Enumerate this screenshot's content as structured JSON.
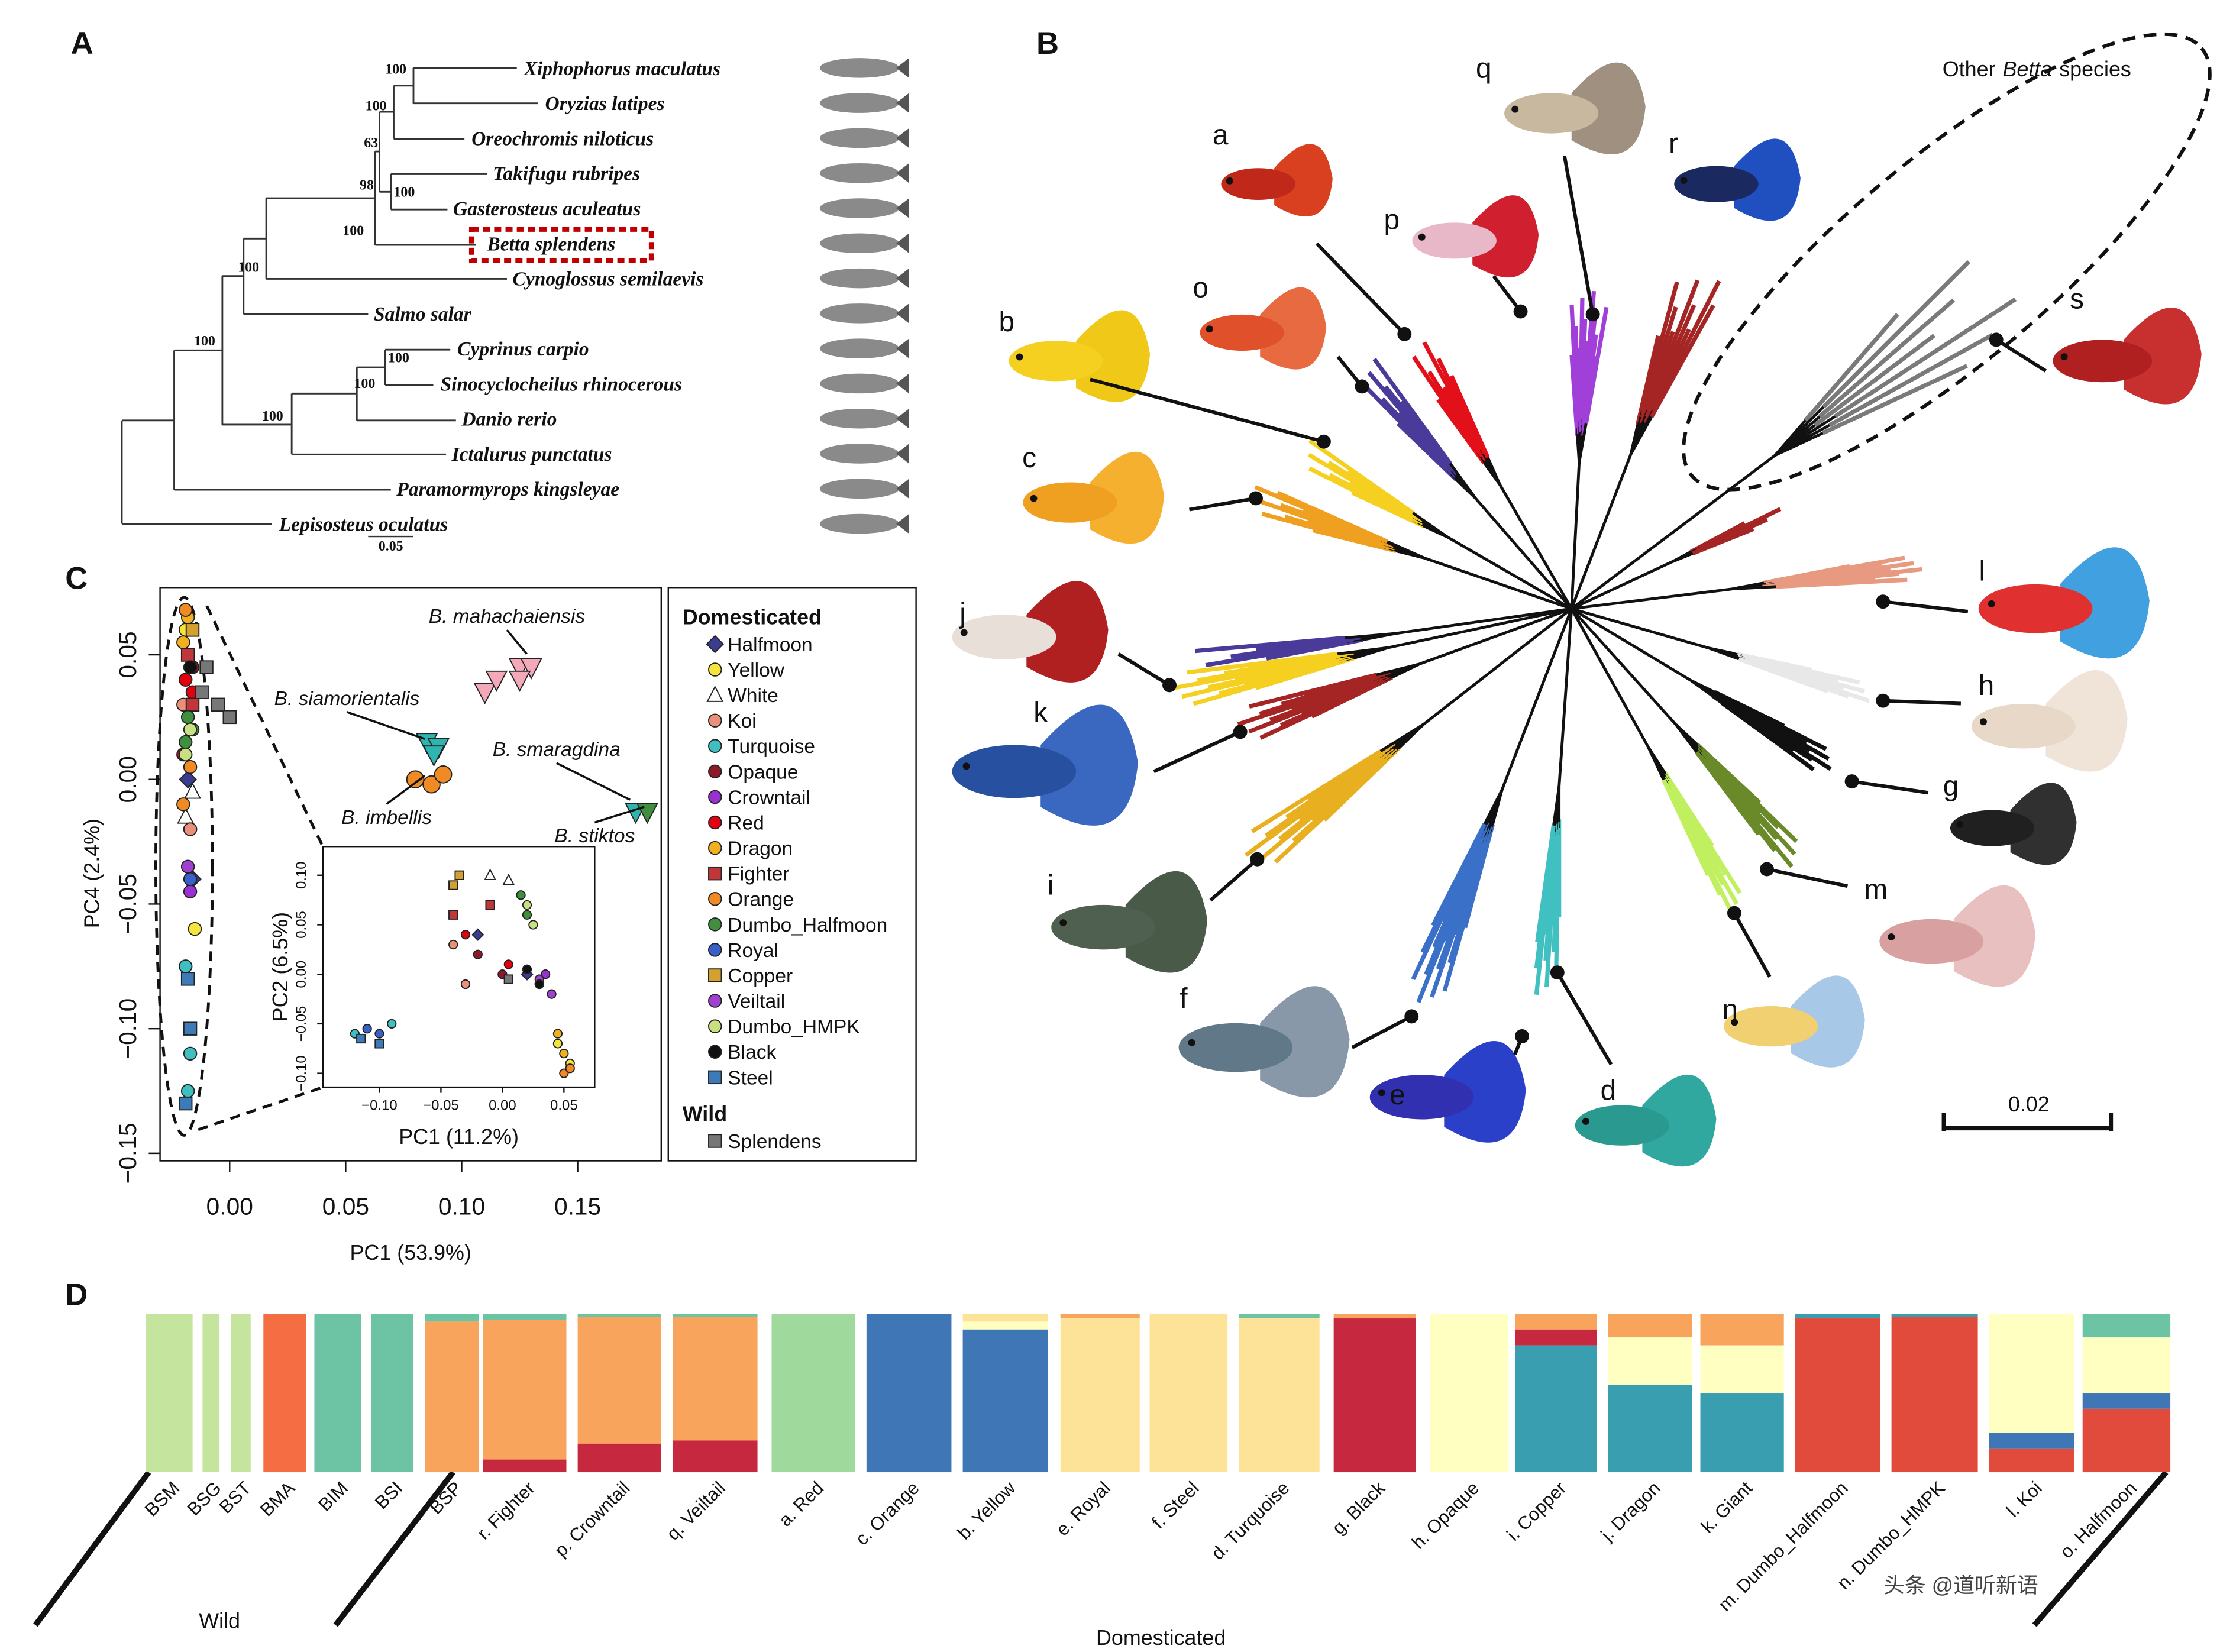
{
  "panel_a": {
    "label": "A",
    "taxa": [
      "Xiphophorus maculatus",
      "Oryzias latipes",
      "Oreochromis niloticus",
      "Takifugu rubripes",
      "Gasterosteus aculeatus",
      "Betta splendens",
      "Cynoglossus semilaevis",
      "Salmo salar",
      "Cyprinus carpio",
      "Sinocyclocheilus rhinocerous",
      "Danio rerio",
      "Ictalurus punctatus",
      "Paramormyrops kingsleyae",
      "Lepisosteus oculatus"
    ],
    "bootstrap": [
      100,
      100,
      63,
      98,
      100,
      100,
      100,
      100,
      100,
      100,
      100
    ],
    "scale": "0.05"
  },
  "panel_b": {
    "label": "B",
    "clades": [
      "a",
      "b",
      "c",
      "o",
      "p",
      "q",
      "r",
      "s",
      "l",
      "h",
      "g",
      "m",
      "n",
      "d",
      "e",
      "f",
      "i",
      "k",
      "j"
    ],
    "annotation": [
      "Other",
      "Betta",
      "species"
    ],
    "scale": "0.02"
  },
  "panel_c": {
    "label": "C",
    "type": "scatter",
    "xlabel": "PC1 (53.9%)",
    "ylabel": "PC4 (2.4%)",
    "xlim": [
      -0.03,
      0.186
    ],
    "ylim": [
      -0.153,
      0.077
    ],
    "xticks": [
      {
        "value": 0,
        "label": "0.00"
      },
      {
        "value": 0.05,
        "label": "0.05"
      },
      {
        "value": 0.1,
        "label": "0.10"
      },
      {
        "value": 0.15,
        "label": "0.15"
      }
    ],
    "yticks": [
      {
        "value": 0.05,
        "label": "0.05"
      },
      {
        "value": 0,
        "label": "0.00"
      },
      {
        "value": -0.05,
        "label": "−0.05"
      },
      {
        "value": -0.1,
        "label": "−0.10"
      },
      {
        "value": -0.15,
        "label": "−0.15"
      }
    ],
    "inset": {
      "xlabel": "PC1 (11.2%)",
      "ylabel": "PC2 (6.5%)",
      "xlim": [
        -0.146,
        0.075
      ],
      "ylim": [
        -0.114,
        0.129
      ],
      "xticks": [
        {
          "value": -0.1,
          "label": "−0.10"
        },
        {
          "value": -0.05,
          "label": "−0.05"
        },
        {
          "value": 0,
          "label": "0.00"
        },
        {
          "value": 0.05,
          "label": "0.05"
        }
      ],
      "yticks": [
        {
          "value": 0.1,
          "label": "0.10"
        },
        {
          "value": 0.05,
          "label": "0.05"
        },
        {
          "value": 0,
          "label": "0.00"
        },
        {
          "value": -0.05,
          "label": "−0.05"
        },
        {
          "value": -0.1,
          "label": "−0.10"
        }
      ]
    },
    "species": [
      {
        "name": "B. mahachaiensis",
        "color": "#f4a9b8",
        "marker": "down",
        "x": [
          0.11,
          0.115,
          0.125,
          0.13,
          0.125
        ],
        "y": [
          0.035,
          0.04,
          0.045,
          0.045,
          0.04
        ]
      },
      {
        "name": "B. siamorientalis",
        "color": "#2fb5b0",
        "marker": "down",
        "x": [
          0.085,
          0.09,
          0.088
        ],
        "y": [
          0.015,
          0.013,
          0.01
        ]
      },
      {
        "name": "B. imbellis",
        "color": "#f08a24",
        "marker": "circle",
        "x": [
          0.08,
          0.087,
          0.092
        ],
        "y": [
          0,
          -0.002,
          0.002
        ]
      },
      {
        "name": "B. smaragdina",
        "color": "#2fb5b0",
        "marker": "down",
        "x": [
          0.175
        ],
        "y": [
          -0.013
        ]
      },
      {
        "name": "B. stiktos",
        "color": "#3f8f3f",
        "marker": "down",
        "x": [
          0.18
        ],
        "y": [
          -0.013
        ]
      }
    ],
    "legend_groups": [
      "Domesticated",
      "Wild"
    ],
    "series": [
      {
        "name": "Halfmoon",
        "color": "#3b3b8f",
        "marker": "diamond",
        "group": 0,
        "x": [
          -0.018,
          -0.016
        ],
        "y": [
          0,
          -0.04
        ],
        "inset_x": [
          -0.02,
          0.02
        ],
        "inset_y": [
          0.04,
          0.0
        ]
      },
      {
        "name": "Yellow",
        "color": "#f5e53a",
        "marker": "circle",
        "group": 0,
        "x": [
          -0.019,
          -0.017,
          -0.015
        ],
        "y": [
          0.06,
          -0.02,
          -0.06
        ],
        "inset_x": [
          0.045,
          0.055
        ],
        "inset_y": [
          -0.07,
          -0.09
        ]
      },
      {
        "name": "White",
        "color": "#ffffff",
        "marker": "up",
        "group": 0,
        "x": [
          -0.016,
          -0.019
        ],
        "y": [
          -0.005,
          -0.015
        ],
        "inset_x": [
          -0.01,
          0.005
        ],
        "inset_y": [
          0.1,
          0.095
        ]
      },
      {
        "name": "Koi",
        "color": "#e8907a",
        "marker": "circle",
        "group": 0,
        "x": [
          -0.02,
          -0.017
        ],
        "y": [
          0.03,
          -0.02
        ],
        "inset_x": [
          -0.04,
          -0.03
        ],
        "inset_y": [
          0.03,
          -0.01
        ]
      },
      {
        "name": "Turquoise",
        "color": "#3fbfbf",
        "marker": "circle",
        "group": 0,
        "x": [
          -0.019,
          -0.017,
          -0.018
        ],
        "y": [
          -0.075,
          -0.11,
          -0.125
        ],
        "inset_x": [
          -0.12,
          -0.09
        ],
        "inset_y": [
          -0.06,
          -0.05
        ]
      },
      {
        "name": "Opaque",
        "color": "#8b1a2b",
        "marker": "circle",
        "group": 0,
        "x": [
          -0.016,
          -0.02
        ],
        "y": [
          0.045,
          0.01
        ],
        "inset_x": [
          -0.02,
          0.0
        ],
        "inset_y": [
          0.02,
          0.0
        ]
      },
      {
        "name": "Crowntail",
        "color": "#9b30d0",
        "marker": "circle",
        "group": 0,
        "x": [
          -0.017
        ],
        "y": [
          -0.045
        ],
        "inset_x": [
          0.03,
          0.035
        ],
        "inset_y": [
          -0.01,
          0.0
        ]
      },
      {
        "name": "Red",
        "color": "#e3000f",
        "marker": "circle",
        "group": 0,
        "x": [
          -0.019,
          -0.016
        ],
        "y": [
          0.04,
          0.035
        ],
        "inset_x": [
          -0.03,
          0.005
        ],
        "inset_y": [
          0.04,
          0.01
        ]
      },
      {
        "name": "Dragon",
        "color": "#f0b020",
        "marker": "circle",
        "group": 0,
        "x": [
          -0.018,
          -0.02
        ],
        "y": [
          0.065,
          0.055
        ],
        "inset_x": [
          0.045,
          0.05
        ],
        "inset_y": [
          -0.06,
          -0.08
        ]
      },
      {
        "name": "Fighter",
        "color": "#c0363a",
        "marker": "square",
        "group": 0,
        "x": [
          -0.018,
          -0.016
        ],
        "y": [
          0.05,
          0.03
        ],
        "inset_x": [
          -0.04,
          -0.01
        ],
        "inset_y": [
          0.06,
          0.07
        ]
      },
      {
        "name": "Orange",
        "color": "#f08a24",
        "marker": "circle",
        "group": 0,
        "x": [
          -0.019,
          -0.017,
          -0.02
        ],
        "y": [
          0.068,
          0.005,
          -0.01
        ],
        "inset_x": [
          0.05,
          0.055
        ],
        "inset_y": [
          -0.1,
          -0.095
        ]
      },
      {
        "name": "Dumbo_Halfmoon",
        "color": "#3f8f3f",
        "marker": "circle",
        "group": 0,
        "x": [
          -0.018,
          -0.016,
          -0.019
        ],
        "y": [
          0.025,
          0.02,
          0.015
        ],
        "inset_x": [
          0.015,
          0.02
        ],
        "inset_y": [
          0.08,
          0.06
        ]
      },
      {
        "name": "Royal",
        "color": "#3a5fc8",
        "marker": "circle",
        "group": 0,
        "x": [
          -0.017
        ],
        "y": [
          -0.04
        ],
        "inset_x": [
          -0.11,
          -0.1
        ],
        "inset_y": [
          -0.055,
          -0.06
        ]
      },
      {
        "name": "Copper",
        "color": "#d4a030",
        "marker": "square",
        "group": 0,
        "x": [
          -0.016
        ],
        "y": [
          0.06
        ],
        "inset_x": [
          -0.04,
          -0.035
        ],
        "inset_y": [
          0.09,
          0.1
        ]
      },
      {
        "name": "Veiltail",
        "color": "#a040d0",
        "marker": "circle",
        "group": 0,
        "x": [
          -0.018
        ],
        "y": [
          -0.035
        ],
        "inset_x": [
          0.04,
          0.03
        ],
        "inset_y": [
          -0.02,
          -0.005
        ]
      },
      {
        "name": "Dumbo_HMPK",
        "color": "#c8e080",
        "marker": "circle",
        "group": 0,
        "x": [
          -0.017,
          -0.019
        ],
        "y": [
          0.02,
          0.01
        ],
        "inset_x": [
          0.02,
          0.025
        ],
        "inset_y": [
          0.07,
          0.05
        ]
      },
      {
        "name": "Black",
        "color": "#111111",
        "marker": "circle",
        "group": 0,
        "x": [
          -0.017
        ],
        "y": [
          0.045
        ],
        "inset_x": [
          0.03,
          0.02
        ],
        "inset_y": [
          -0.01,
          0.005
        ]
      },
      {
        "name": "Steel",
        "color": "#3c7ab8",
        "marker": "square",
        "group": 0,
        "x": [
          -0.018,
          -0.017,
          -0.019
        ],
        "y": [
          -0.08,
          -0.1,
          -0.13
        ],
        "inset_x": [
          -0.115,
          -0.1
        ],
        "inset_y": [
          -0.065,
          -0.07
        ]
      },
      {
        "name": "Splendens",
        "color": "#777777",
        "marker": "square",
        "group": 1,
        "x": [
          -0.01,
          -0.005,
          -0.012,
          0.0
        ],
        "y": [
          0.045,
          0.03,
          0.035,
          0.025
        ],
        "inset_x": [
          0.005
        ],
        "inset_y": [
          -0.005
        ]
      }
    ]
  },
  "panel_d": {
    "label": "D",
    "cluster_colors": [
      "#c5e59e",
      "#f46d43",
      "#6cc4a4",
      "#f9a45c",
      "#c5283f",
      "#fde398",
      "#ffffc2",
      "#3e76b6",
      "#3a9eb1",
      "#e04b3c",
      "#9fd99b"
    ],
    "groups": [
      {
        "label": "BSM",
        "proportions": [
          1,
          0,
          0,
          0,
          0,
          0,
          0,
          0,
          0,
          0,
          0
        ]
      },
      {
        "label": "BSG",
        "proportions": [
          1,
          0,
          0,
          0,
          0,
          0,
          0,
          0,
          0,
          0,
          0
        ]
      },
      {
        "label": "BST",
        "proportions": [
          1,
          0,
          0,
          0,
          0,
          0,
          0,
          0,
          0,
          0,
          0
        ]
      },
      {
        "label": "BMA",
        "proportions": [
          0,
          1,
          0,
          0,
          0,
          0,
          0,
          0,
          0,
          0,
          0
        ]
      },
      {
        "label": "BIM",
        "proportions": [
          0,
          0,
          1,
          0,
          0,
          0,
          0,
          0,
          0,
          0,
          0
        ]
      },
      {
        "label": "BSI",
        "proportions": [
          0,
          0,
          1,
          0,
          0,
          0,
          0,
          0,
          0,
          0,
          0
        ]
      },
      {
        "label": "BSP",
        "proportions": [
          0,
          0,
          0.05,
          0.95,
          0,
          0,
          0,
          0,
          0,
          0,
          0
        ]
      },
      {
        "label": "r. Fighter",
        "proportions": [
          0,
          0,
          0.04,
          0.88,
          0.08,
          0,
          0,
          0,
          0,
          0,
          0
        ]
      },
      {
        "label": "p. Crowntail",
        "proportions": [
          0,
          0,
          0.02,
          0.8,
          0.18,
          0,
          0,
          0,
          0,
          0,
          0
        ]
      },
      {
        "label": "q. Veiltail",
        "proportions": [
          0,
          0,
          0.02,
          0.78,
          0.2,
          0,
          0,
          0,
          0,
          0,
          0
        ]
      },
      {
        "label": "a. Red",
        "proportions": [
          0,
          0,
          0,
          0,
          0,
          0,
          0,
          0,
          0,
          0,
          1
        ]
      },
      {
        "label": "c. Orange",
        "proportions": [
          0,
          0,
          0,
          0,
          0,
          0,
          0,
          1,
          0,
          0,
          0
        ]
      },
      {
        "label": "b. Yellow",
        "proportions": [
          0,
          0,
          0,
          0,
          0,
          0.05,
          0.05,
          0.9,
          0,
          0,
          0
        ]
      },
      {
        "label": "e. Royal",
        "proportions": [
          0,
          0,
          0,
          0.03,
          0,
          0.97,
          0,
          0,
          0,
          0,
          0
        ]
      },
      {
        "label": "f. Steel",
        "proportions": [
          0,
          0,
          0,
          0,
          0,
          1,
          0,
          0,
          0,
          0,
          0
        ]
      },
      {
        "label": "d. Turquoise",
        "proportions": [
          0,
          0,
          0.03,
          0,
          0,
          0.97,
          0,
          0,
          0,
          0,
          0
        ]
      },
      {
        "label": "g. Black",
        "proportions": [
          0,
          0,
          0,
          0.03,
          0.97,
          0,
          0,
          0,
          0,
          0,
          0
        ]
      },
      {
        "label": "h. Opaque",
        "proportions": [
          0,
          0,
          0,
          0,
          0,
          0,
          1,
          0,
          0,
          0,
          0
        ]
      },
      {
        "label": "i. Copper",
        "proportions": [
          0,
          0,
          0,
          0.1,
          0.1,
          0,
          0,
          0,
          0.8,
          0,
          0
        ]
      },
      {
        "label": "j. Dragon",
        "proportions": [
          0,
          0,
          0,
          0.15,
          0,
          0,
          0.3,
          0,
          0.55,
          0,
          0
        ]
      },
      {
        "label": "k. Giant",
        "proportions": [
          0,
          0,
          0,
          0.2,
          0,
          0,
          0.3,
          0,
          0.5,
          0,
          0
        ]
      },
      {
        "label": "m. Dumbo_Halfmoon",
        "proportions": [
          0,
          0,
          0,
          0,
          0,
          0,
          0,
          0,
          0.03,
          0.97,
          0
        ]
      },
      {
        "label": "n. Dumbo_HMPK",
        "proportions": [
          0,
          0,
          0,
          0,
          0,
          0,
          0,
          0,
          0.02,
          0.98,
          0
        ]
      },
      {
        "label": "l. Koi",
        "proportions": [
          0,
          0,
          0,
          0,
          0,
          0,
          0.75,
          0.1,
          0,
          0.15,
          0
        ]
      },
      {
        "label": "o. Halfmoon",
        "proportions": [
          0,
          0,
          0.15,
          0,
          0,
          0,
          0.35,
          0.1,
          0,
          0.4,
          0
        ]
      }
    ],
    "wild_label": "Wild",
    "domesticated_label": "Domesticated"
  },
  "watermark": "头条 @道听新语"
}
